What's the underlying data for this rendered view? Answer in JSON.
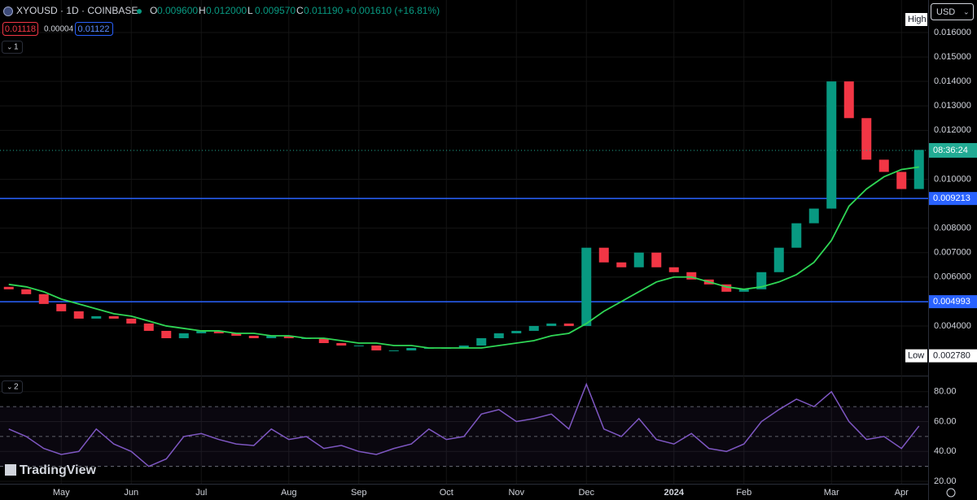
{
  "header": {
    "symbol": "XYOUSD · 1D · COINBASE",
    "ohlc": [
      {
        "label": "O",
        "value": "0.009600"
      },
      {
        "label": "H",
        "value": "0.012000"
      },
      {
        "label": "L",
        "value": "0.009570"
      },
      {
        "label": "C",
        "value": "0.011190"
      }
    ],
    "change": "+0.001610 (+16.81%)",
    "bid": "0.01118",
    "spread": "0.00004",
    "ask": "0.01122"
  },
  "currency": "USD",
  "logo": "TradingView",
  "chart_data": [
    {
      "type": "candlestick",
      "pane_label": "1",
      "categories": [
        null,
        null,
        null,
        "May",
        null,
        null,
        null,
        "Jun",
        null,
        null,
        null,
        "Jul",
        null,
        null,
        null,
        null,
        "Aug",
        null,
        null,
        null,
        "Sep",
        null,
        null,
        null,
        null,
        "Oct",
        null,
        null,
        null,
        "Nov",
        null,
        null,
        null,
        "Dec",
        null,
        null,
        null,
        null,
        "2024",
        null,
        null,
        null,
        "Feb",
        null,
        null,
        null,
        null,
        "Mar",
        null,
        null,
        null,
        "Apr",
        null
      ],
      "open": [
        0.0056,
        0.0055,
        0.0053,
        0.0049,
        0.0046,
        0.0043,
        0.0044,
        0.0043,
        0.0041,
        0.0038,
        0.0035,
        0.0037,
        0.0038,
        0.0037,
        0.0036,
        0.0035,
        0.0036,
        0.0035,
        0.0035,
        0.0033,
        0.0032,
        0.0032,
        0.003,
        0.003,
        0.0031,
        0.0031,
        0.0031,
        0.0032,
        0.0035,
        0.0037,
        0.0038,
        0.004,
        0.0041,
        0.004,
        0.0072,
        0.0066,
        0.0064,
        0.007,
        0.0064,
        0.0062,
        0.0059,
        0.0057,
        0.0054,
        0.0055,
        0.0062,
        0.0072,
        0.0082,
        0.0088,
        0.014,
        0.0125,
        0.0108,
        0.0103,
        0.0096
      ],
      "high": {
        "text": "High"
      },
      "low": {
        "text": "Low",
        "value": 0.00278,
        "value_label": "0.002780"
      },
      "close": [
        0.0055,
        0.0053,
        0.0049,
        0.0046,
        0.0043,
        0.0044,
        0.0043,
        0.0041,
        0.0038,
        0.0035,
        0.0037,
        0.0038,
        0.0037,
        0.0036,
        0.0035,
        0.0036,
        0.0035,
        0.0035,
        0.0033,
        0.0032,
        0.0032,
        0.003,
        0.003,
        0.0031,
        0.0031,
        0.0031,
        0.0032,
        0.0035,
        0.0037,
        0.0038,
        0.004,
        0.0041,
        0.004,
        0.0072,
        0.0066,
        0.0064,
        0.007,
        0.0064,
        0.0062,
        0.0059,
        0.0057,
        0.0054,
        0.0055,
        0.0062,
        0.0072,
        0.0082,
        0.0088,
        0.014,
        0.0125,
        0.0108,
        0.0103,
        0.0096,
        0.0112
      ],
      "up_color": "#089981",
      "down_color": "#f23645",
      "ma": {
        "color": "#2fd655",
        "values": [
          0.0057,
          0.0056,
          0.0054,
          0.0051,
          0.0049,
          0.0047,
          0.0045,
          0.0044,
          0.0042,
          0.004,
          0.0039,
          0.0038,
          0.0038,
          0.0037,
          0.0037,
          0.0036,
          0.0036,
          0.0035,
          0.0035,
          0.0034,
          0.0033,
          0.0033,
          0.0032,
          0.0032,
          0.0031,
          0.0031,
          0.0031,
          0.0031,
          0.0032,
          0.0033,
          0.0034,
          0.0036,
          0.0037,
          0.0041,
          0.0046,
          0.005,
          0.0054,
          0.0058,
          0.006,
          0.006,
          0.0058,
          0.0056,
          0.0055,
          0.0056,
          0.0058,
          0.0061,
          0.0066,
          0.0075,
          0.0089,
          0.0096,
          0.0101,
          0.0104,
          0.0105
        ]
      },
      "ylim": [
        0.00197,
        0.01733
      ],
      "yticks": [
        {
          "value": 0.004,
          "label": "0.004000"
        },
        {
          "value": 0.006,
          "label": "0.006000"
        },
        {
          "value": 0.007,
          "label": "0.007000"
        },
        {
          "value": 0.008,
          "label": "0.008000"
        },
        {
          "value": 0.01,
          "label": "0.010000"
        },
        {
          "value": 0.012,
          "label": "0.012000"
        },
        {
          "value": 0.013,
          "label": "0.013000"
        },
        {
          "value": 0.014,
          "label": "0.014000"
        },
        {
          "value": 0.015,
          "label": "0.015000"
        },
        {
          "value": 0.016,
          "label": "0.016000"
        }
      ],
      "hlines": [
        {
          "value": 0.009213,
          "label": "0.009213",
          "color": "#2962ff"
        },
        {
          "value": 0.004993,
          "label": "0.004993",
          "color": "#2962ff"
        }
      ],
      "last_price": {
        "value": 0.01118,
        "label": "08:36:24",
        "color": "#22ab94"
      }
    },
    {
      "type": "line",
      "pane_label": "2",
      "color": "#7e57c2",
      "values": [
        55,
        50,
        42,
        38,
        40,
        55,
        45,
        40,
        30,
        35,
        50,
        52,
        48,
        45,
        44,
        55,
        48,
        50,
        42,
        44,
        40,
        38,
        42,
        45,
        55,
        48,
        50,
        65,
        68,
        60,
        62,
        65,
        55,
        85,
        55,
        50,
        62,
        48,
        45,
        52,
        42,
        40,
        45,
        60,
        68,
        75,
        70,
        80,
        60,
        48,
        50,
        42,
        57
      ],
      "ylim": [
        18.4,
        90.2
      ],
      "yticks": [
        {
          "value": 20,
          "label": "20.00"
        },
        {
          "value": 40,
          "label": "40.00"
        },
        {
          "value": 60,
          "label": "60.00"
        },
        {
          "value": 80,
          "label": "80.00"
        }
      ],
      "levels": [
        30,
        50,
        70
      ]
    }
  ]
}
